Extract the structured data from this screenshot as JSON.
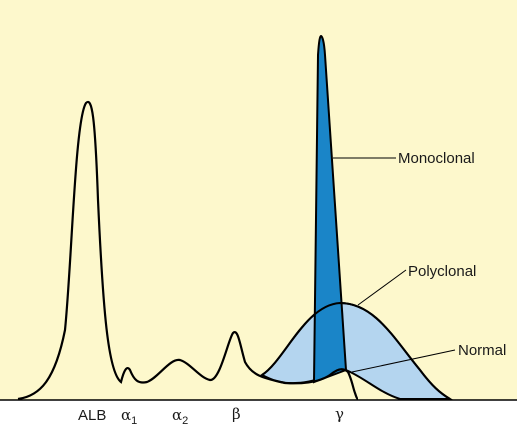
{
  "colors": {
    "background": "#fdf8cc",
    "monoclonal_fill": "#1a85c8",
    "polyclonal_fill": "#b4d5ef",
    "overlap_fill": "#5aa3d8",
    "line": "#000000"
  },
  "callouts": {
    "monoclonal": "Monoclonal",
    "polyclonal": "Polyclonal",
    "normal": "Normal"
  },
  "axis_labels": {
    "alb": "ALB",
    "alpha": "α",
    "alpha1_sub": "1",
    "alpha2_sub": "2",
    "beta": "β",
    "gamma": "γ"
  }
}
